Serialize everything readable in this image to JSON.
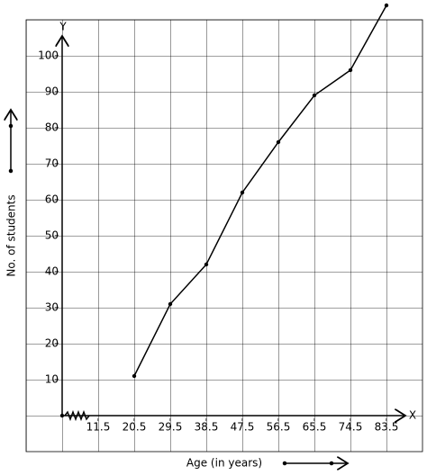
{
  "chart_data": {
    "type": "line",
    "x_label": "Age (in years)",
    "y_label": "No. of students",
    "x_axis_name": "X",
    "y_axis_name": "Y",
    "xticks": [
      11.5,
      20.5,
      29.5,
      38.5,
      47.5,
      56.5,
      65.5,
      74.5,
      83.5
    ],
    "yticks": [
      10,
      20,
      30,
      40,
      50,
      60,
      70,
      80,
      90,
      100
    ],
    "xlim": [
      -6.5,
      92.5
    ],
    "ylim": [
      -10,
      110
    ],
    "x": [
      20.5,
      29.5,
      38.5,
      47.5,
      56.5,
      65.5,
      74.5,
      83.5
    ],
    "values": [
      11,
      31,
      42,
      62,
      76,
      89,
      96,
      114
    ],
    "color": "#000000",
    "grid": true
  }
}
